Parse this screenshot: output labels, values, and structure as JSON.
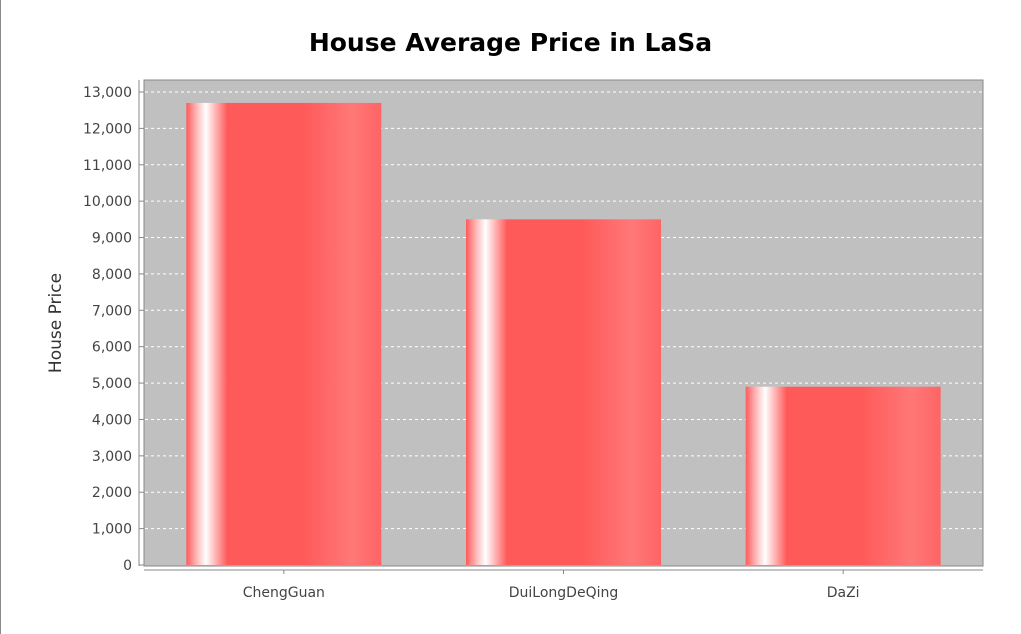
{
  "chart_data": {
    "type": "bar",
    "title": "House Average Price in LaSa",
    "xlabel": "",
    "ylabel": "House Price",
    "categories": [
      "ChengGuan",
      "DuiLongDeQing",
      "DaZi"
    ],
    "values": [
      12700,
      9500,
      4900
    ],
    "ylim": [
      0,
      13000
    ],
    "yticks": [
      0,
      1000,
      2000,
      3000,
      4000,
      5000,
      6000,
      7000,
      8000,
      9000,
      10000,
      11000,
      12000,
      13000
    ],
    "ytick_labels": [
      "0",
      "1,000",
      "2,000",
      "3,000",
      "4,000",
      "5,000",
      "6,000",
      "7,000",
      "8,000",
      "9,000",
      "10,000",
      "11,000",
      "12,000",
      "13,000"
    ],
    "grid": true,
    "legend": "none",
    "colors": {
      "bar": "#ff5a5a",
      "plot_background": "#c0c0c0",
      "gridline": "#ffffff"
    }
  }
}
